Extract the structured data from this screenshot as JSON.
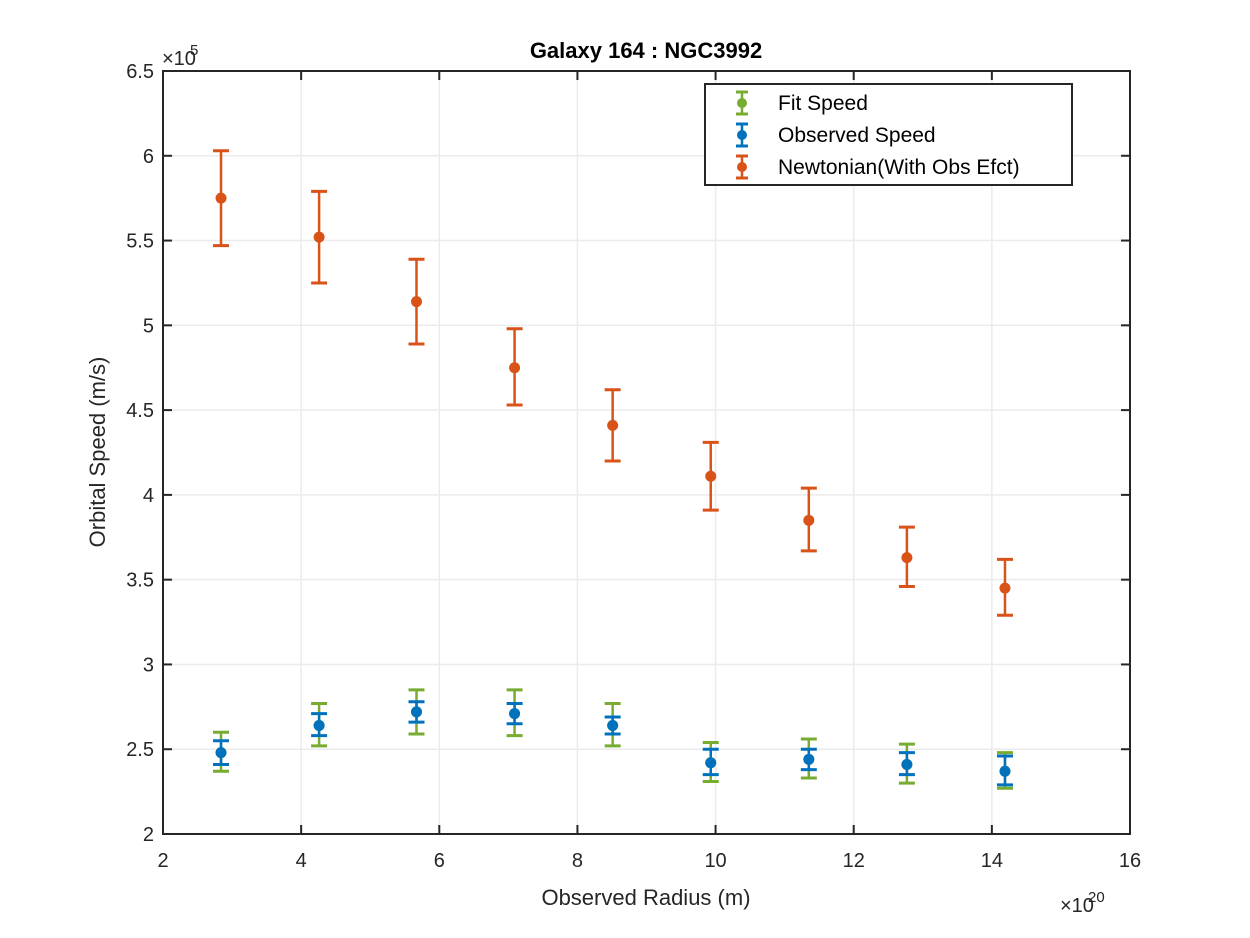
{
  "chart_data": {
    "type": "scatter",
    "title": "Galaxy 164 : NGC3992",
    "xlabel": "Observed Radius (m)",
    "ylabel": "Orbital Speed (m/s)",
    "x_exponent_base": "×10",
    "x_exponent_power": "20",
    "y_exponent_base": "×10",
    "y_exponent_power": "5",
    "xlim": [
      2,
      16
    ],
    "ylim": [
      2,
      6.5
    ],
    "x_ticks": [
      "2",
      "4",
      "6",
      "8",
      "10",
      "12",
      "14",
      "16"
    ],
    "y_ticks": [
      "2",
      "2.5",
      "3",
      "3.5",
      "4",
      "4.5",
      "5",
      "5.5",
      "6",
      "6.5"
    ],
    "grid": true,
    "legend_position": "top-right",
    "series": [
      {
        "name": "Fit Speed",
        "color": "#77AC30",
        "x": [
          2.84,
          4.26,
          5.67,
          7.09,
          8.51,
          9.93,
          11.35,
          12.77,
          14.19
        ],
        "y": [
          2.48,
          2.64,
          2.72,
          2.71,
          2.64,
          2.42,
          2.44,
          2.41,
          2.37
        ],
        "err_low": [
          2.37,
          2.52,
          2.59,
          2.58,
          2.52,
          2.31,
          2.33,
          2.3,
          2.27
        ],
        "err_high": [
          2.6,
          2.77,
          2.85,
          2.85,
          2.77,
          2.54,
          2.56,
          2.53,
          2.48
        ]
      },
      {
        "name": "Observed Speed",
        "color": "#0072BD",
        "x": [
          2.84,
          4.26,
          5.67,
          7.09,
          8.51,
          9.93,
          11.35,
          12.77,
          14.19
        ],
        "y": [
          2.48,
          2.64,
          2.72,
          2.71,
          2.64,
          2.42,
          2.44,
          2.41,
          2.37
        ],
        "err_low": [
          2.41,
          2.58,
          2.66,
          2.65,
          2.59,
          2.35,
          2.38,
          2.35,
          2.29
        ],
        "err_high": [
          2.55,
          2.71,
          2.78,
          2.77,
          2.69,
          2.5,
          2.5,
          2.48,
          2.46
        ]
      },
      {
        "name": "Newtonian(With Obs Efct)",
        "color": "#D95319",
        "x": [
          2.84,
          4.26,
          5.67,
          7.09,
          8.51,
          9.93,
          11.35,
          12.77,
          14.19
        ],
        "y": [
          5.75,
          5.52,
          5.14,
          4.75,
          4.41,
          4.11,
          3.85,
          3.63,
          3.45
        ],
        "err_low": [
          5.47,
          5.25,
          4.89,
          4.53,
          4.2,
          3.91,
          3.67,
          3.46,
          3.29
        ],
        "err_high": [
          6.03,
          5.79,
          5.39,
          4.98,
          4.62,
          4.31,
          4.04,
          3.81,
          3.62
        ]
      }
    ]
  }
}
